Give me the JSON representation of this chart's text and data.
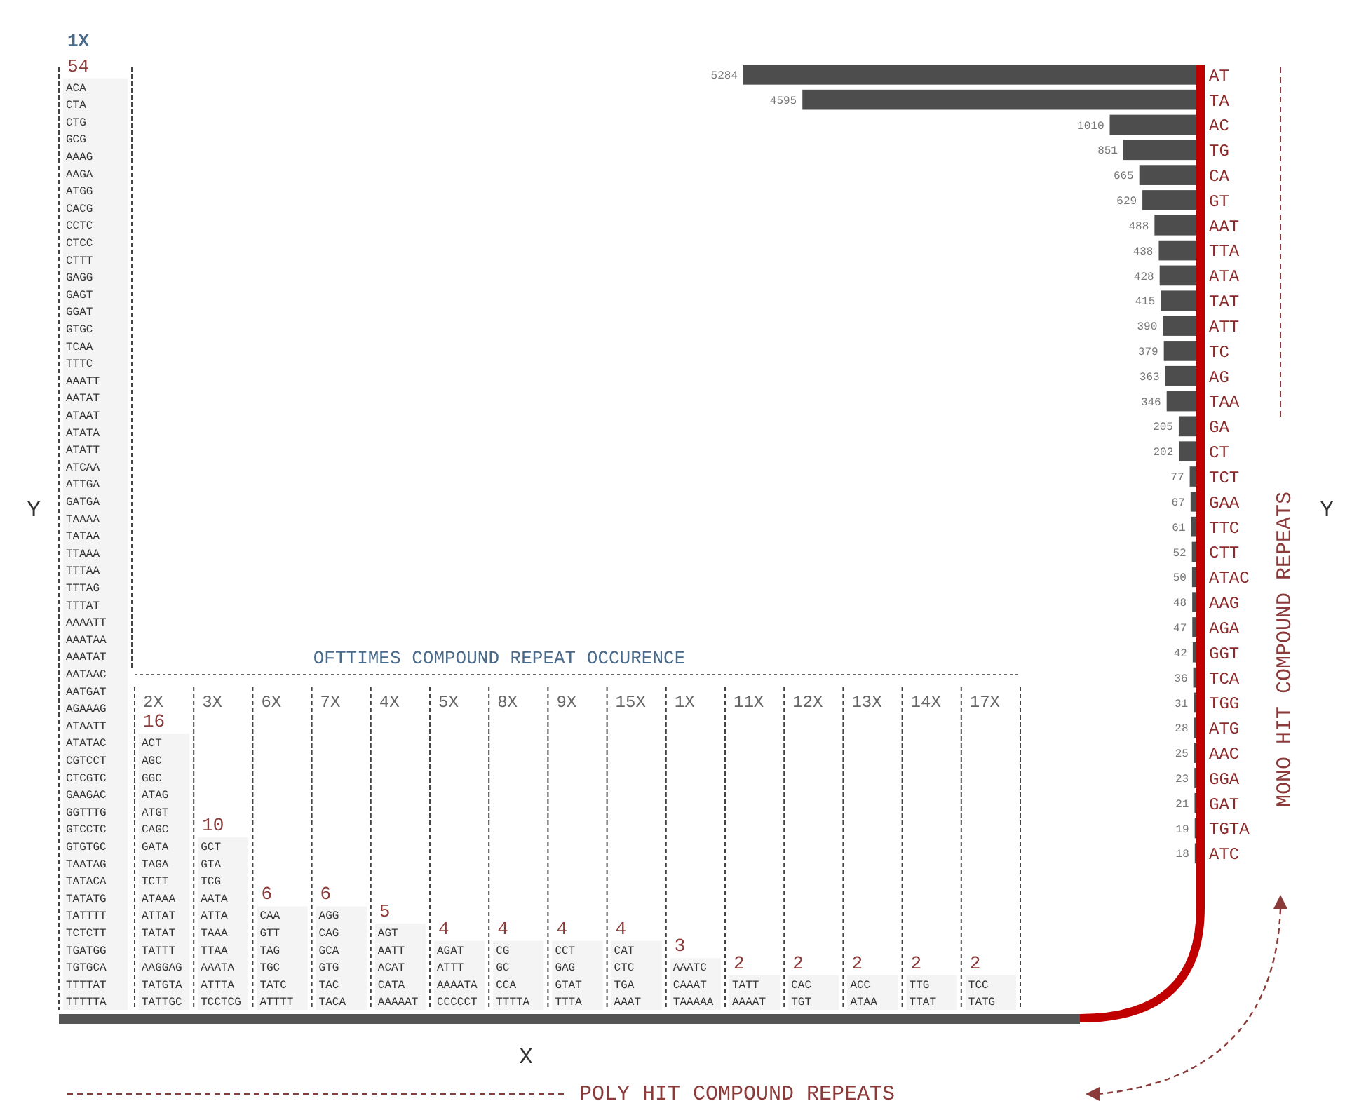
{
  "chart_data": [
    {
      "type": "bar",
      "ylabel": "Y",
      "categories": [
        "1X"
      ],
      "values": [
        54
      ],
      "color": "#f4f4f4",
      "data_labels": true,
      "annotations": [
        "ACA",
        "CTA",
        "CTG",
        "GCG",
        "AAAG",
        "AAGA",
        "ATGG",
        "CACG",
        "CCTC",
        "CTCC",
        "CTTT",
        "GAGG",
        "GAGT",
        "GGAT",
        "GTGC",
        "TCAA",
        "TTTC",
        "AAATT",
        "AATAT",
        "ATAAT",
        "ATATA",
        "ATATT",
        "ATCAA",
        "ATTGA",
        "GATGA",
        "TAAAA",
        "TATAA",
        "TTAAA",
        "TTTAA",
        "TTTAG",
        "TTTAT",
        "AAAATT",
        "AAATAA",
        "AAATAT",
        "AATAAC",
        "AATGAT",
        "AGAAAG",
        "ATAATT",
        "ATATAC",
        "CGTCCT",
        "CTCGTC",
        "GAAGAC",
        "GGTTTG",
        "GTCCTC",
        "GTGTGC",
        "TAATAG",
        "TATACA",
        "TATATG",
        "TATTTT",
        "TCTCTT",
        "TGATGG",
        "TGTGCA",
        "TTTTAT",
        "TTTTTA"
      ]
    },
    {
      "type": "bar",
      "title": "OFTTIMES COMPOUND REPEAT OCCURENCE",
      "subtitle": "POLY HIT COMPOUND REPEATS",
      "xlabel": "X",
      "categories": [
        "2X",
        "3X",
        "6X",
        "7X",
        "4X",
        "5X",
        "8X",
        "9X",
        "15X",
        "1X",
        "11X",
        "12X",
        "13X",
        "14X",
        "17X"
      ],
      "values": [
        16,
        10,
        6,
        6,
        5,
        4,
        4,
        4,
        4,
        3,
        2,
        2,
        2,
        2,
        2
      ],
      "color": "#f4f4f4",
      "data_labels": true,
      "annotations": [
        "ACT",
        "AGC",
        "GGC",
        "ATAG",
        "ATGT",
        "CAGC",
        "GATA",
        "TAGA",
        "TCTT",
        "ATAAA",
        "ATTAT",
        "TATAT",
        "TATTT",
        "AAGGAG",
        "TATGTA",
        "TATTGC",
        "GCT",
        "GTA",
        "TCG",
        "AATA",
        "ATTA",
        "TAAA",
        "TTAA",
        "AAATA",
        "ATTTA",
        "TCCTCG",
        "CAA",
        "GTT",
        "TAG",
        "TGC",
        "TATC",
        "ATTTT",
        "AGG",
        "CAG",
        "GCA",
        "GTG",
        "TAC",
        "TACA",
        "AGT",
        "AATT",
        "ACAT",
        "CATA",
        "AAAAAT",
        "AGAT",
        "ATTT",
        "AAAATA",
        "CCCCCT",
        "CG",
        "GC",
        "CCA",
        "TTTTA",
        "CCT",
        "GAG",
        "GTAT",
        "TTTA",
        "CAT",
        "CTC",
        "TGA",
        "AAAT",
        "AAATC",
        "CAAAT",
        "TAAAAA",
        "TATT",
        "AAAAT",
        "CAC",
        "TGT",
        "ACC",
        "ATAA",
        "TTG",
        "TTAT",
        "TCC",
        "TATG"
      ]
    },
    {
      "type": "bar",
      "orientation": "horizontal",
      "ylabel": "Y",
      "y2label": "MONO HIT COMPOUND REPEATS",
      "color": "#4d4d4d",
      "data_labels": true,
      "categories": [
        "AT",
        "TA",
        "AC",
        "TG",
        "CA",
        "GT",
        "AAT",
        "TTA",
        "ATA",
        "TAT",
        "ATT",
        "TC",
        "AG",
        "TAA",
        "GA",
        "CT",
        "TCT",
        "GAA",
        "TTC",
        "CTT",
        "ATAC",
        "AAG",
        "AGA",
        "GGT",
        "TCA",
        "TGG",
        "ATG",
        "AAC",
        "GGA",
        "GAT",
        "TGTA",
        "ATC"
      ],
      "values": [
        5284,
        4595,
        1010,
        851,
        665,
        629,
        488,
        438,
        428,
        415,
        390,
        379,
        363,
        346,
        205,
        202,
        77,
        67,
        61,
        52,
        50,
        48,
        47,
        42,
        36,
        31,
        28,
        25,
        23,
        21,
        19,
        18
      ]
    }
  ]
}
